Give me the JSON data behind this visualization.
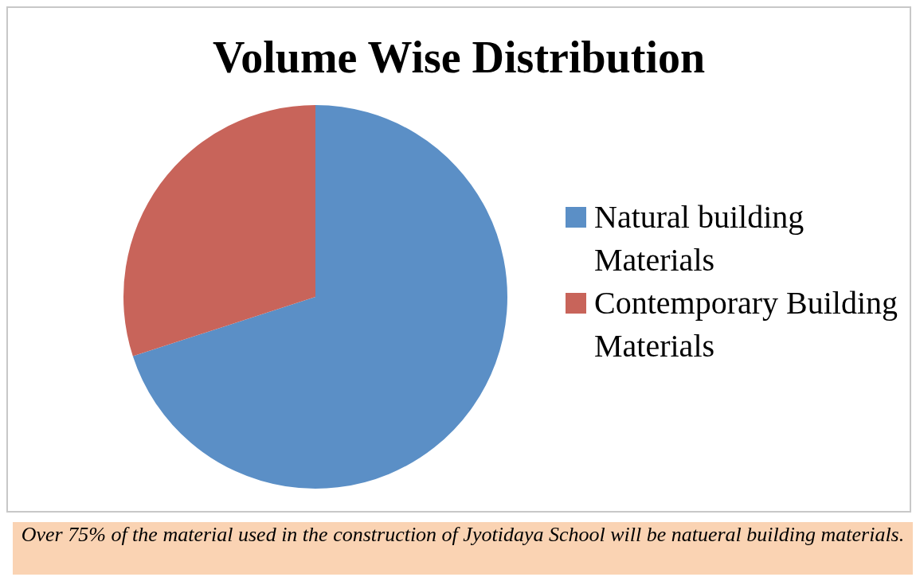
{
  "chart_data": {
    "type": "pie",
    "title": "Volume Wise Distribution",
    "categories": [
      "Natural building Materials",
      "Contemporary Building Materials"
    ],
    "values": [
      70,
      30
    ],
    "colors": [
      "#5b8fc6",
      "#c8645a"
    ],
    "legend": "right",
    "annotations": [
      "Over 75% of the material used in the construction of Jyotidaya School will be natueral building materials."
    ]
  }
}
